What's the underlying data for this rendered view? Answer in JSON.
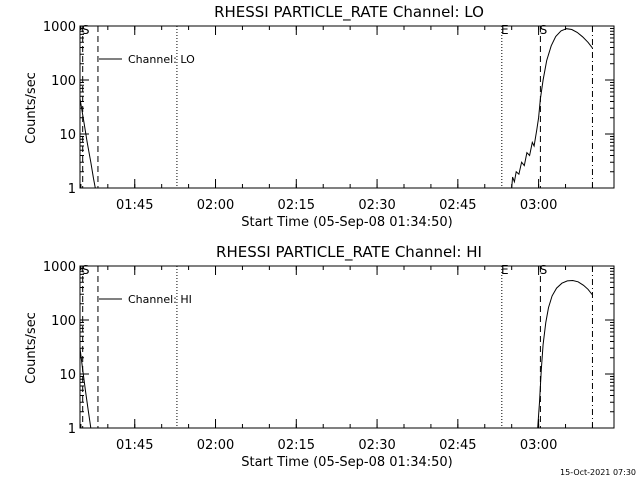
{
  "timestamp": "15-Oct-2021 07:30",
  "chart_data": [
    {
      "type": "line",
      "title": "RHESSI PARTICLE_RATE Channel: LO",
      "xlabel": "Start Time (05-Sep-08 01:34:50)",
      "ylabel": "Counts/sec",
      "y_scale": "log",
      "ylim": [
        1,
        1000
      ],
      "yticks": [
        "1",
        "10",
        "100",
        "1000"
      ],
      "x_range": [
        "01:34:50",
        "03:14:00"
      ],
      "xticks": [
        "01:45",
        "02:00",
        "02:15",
        "02:30",
        "02:45",
        "03:00"
      ],
      "legend": {
        "label": "Channel: LO",
        "placement": "top-left"
      },
      "markers": [
        {
          "label": "S",
          "time": "01:35:20",
          "style": "dashed"
        },
        {
          "label": "",
          "time": "01:38:10",
          "style": "dashed"
        },
        {
          "label": "",
          "time": "01:52:50",
          "style": "dotted"
        },
        {
          "label": "E",
          "time": "02:53:10",
          "style": "dotted"
        },
        {
          "label": "S",
          "time": "03:00:20",
          "style": "dashed"
        },
        {
          "label": "",
          "time": "03:10:00",
          "style": "dashdot"
        }
      ],
      "series": [
        {
          "name": "Channel: LO",
          "segments": [
            [
              [
                "01:34:50",
                45
              ],
              [
                "01:35:30",
                18
              ],
              [
                "01:36:10",
                7
              ],
              [
                "01:36:50",
                3
              ],
              [
                "01:37:20",
                1.5
              ],
              [
                "01:37:40",
                1
              ]
            ],
            [
              [
                "02:55:00",
                1
              ],
              [
                "02:55:10",
                1.6
              ],
              [
                "02:55:30",
                1.3
              ],
              [
                "02:55:50",
                2
              ],
              [
                "02:56:20",
                1.8
              ],
              [
                "02:56:50",
                3
              ],
              [
                "02:57:20",
                2.6
              ],
              [
                "02:57:50",
                4.5
              ],
              [
                "02:58:20",
                4
              ],
              [
                "02:58:50",
                7
              ],
              [
                "02:59:10",
                6
              ],
              [
                "02:59:40",
                12
              ],
              [
                "03:00:00",
                20
              ],
              [
                "03:00:20",
                45
              ],
              [
                "03:00:50",
                100
              ],
              [
                "03:01:30",
                230
              ],
              [
                "03:02:20",
                430
              ],
              [
                "03:03:10",
                640
              ],
              [
                "03:04:10",
                810
              ],
              [
                "03:05:10",
                890
              ],
              [
                "03:06:10",
                860
              ],
              [
                "03:07:10",
                760
              ],
              [
                "03:08:10",
                630
              ],
              [
                "03:09:10",
                500
              ],
              [
                "03:10:00",
                390
              ]
            ]
          ]
        }
      ]
    },
    {
      "type": "line",
      "title": "RHESSI PARTICLE_RATE Channel: HI",
      "xlabel": "Start Time (05-Sep-08 01:34:50)",
      "ylabel": "Counts/sec",
      "y_scale": "log",
      "ylim": [
        1,
        1000
      ],
      "yticks": [
        "1",
        "10",
        "100",
        "1000"
      ],
      "x_range": [
        "01:34:50",
        "03:14:00"
      ],
      "xticks": [
        "01:45",
        "02:00",
        "02:15",
        "02:30",
        "02:45",
        "03:00"
      ],
      "legend": {
        "label": "Channel: HI",
        "placement": "top-left"
      },
      "markers": [
        {
          "label": "S",
          "time": "01:35:20",
          "style": "dashed"
        },
        {
          "label": "",
          "time": "01:38:10",
          "style": "dashed"
        },
        {
          "label": "",
          "time": "01:52:50",
          "style": "dotted"
        },
        {
          "label": "E",
          "time": "02:53:10",
          "style": "dotted"
        },
        {
          "label": "S",
          "time": "03:00:20",
          "style": "dashed"
        },
        {
          "label": "",
          "time": "03:10:00",
          "style": "dashdot"
        }
      ],
      "series": [
        {
          "name": "Channel: HI",
          "segments": [
            [
              [
                "01:34:50",
                30
              ],
              [
                "01:35:20",
                12
              ],
              [
                "01:35:50",
                5
              ],
              [
                "01:36:20",
                2.2
              ],
              [
                "01:36:40",
                1.3
              ],
              [
                "01:36:50",
                1
              ]
            ],
            [
              [
                "02:59:50",
                1
              ],
              [
                "03:00:10",
                3
              ],
              [
                "03:00:30",
                12
              ],
              [
                "03:00:50",
                35
              ],
              [
                "03:01:20",
                90
              ],
              [
                "03:01:50",
                170
              ],
              [
                "03:02:30",
                280
              ],
              [
                "03:03:20",
                390
              ],
              [
                "03:04:20",
                480
              ],
              [
                "03:05:20",
                530
              ],
              [
                "03:06:20",
                540
              ],
              [
                "03:07:20",
                510
              ],
              [
                "03:08:20",
                440
              ],
              [
                "03:09:10",
                370
              ],
              [
                "03:10:00",
                290
              ]
            ]
          ]
        }
      ]
    }
  ]
}
